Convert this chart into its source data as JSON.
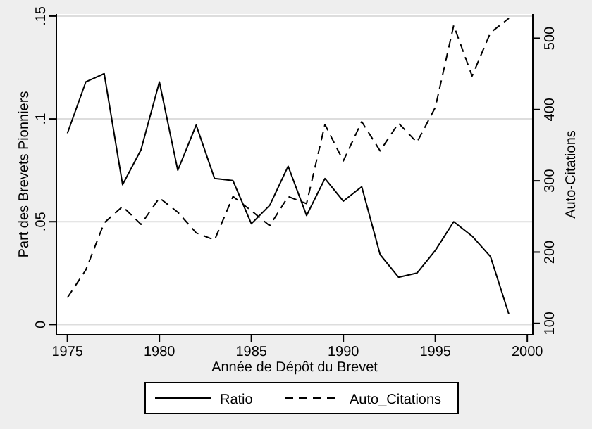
{
  "chart_data": {
    "type": "line",
    "xlabel": "Année de Dépôt du Brevet",
    "ylabel": "Part des Brevets Pionniers",
    "y2label": "Auto-Citations",
    "x": [
      1975,
      1976,
      1977,
      1978,
      1979,
      1980,
      1981,
      1982,
      1983,
      1984,
      1985,
      1986,
      1987,
      1988,
      1989,
      1990,
      1991,
      1992,
      1993,
      1994,
      1995,
      1996,
      1997,
      1998,
      1999
    ],
    "series": [
      {
        "name": "Ratio",
        "color": "#000000",
        "line_style": "solid",
        "values": [
          0.093,
          0.118,
          0.122,
          0.068,
          0.085,
          0.118,
          0.075,
          0.097,
          0.071,
          0.07,
          0.049,
          0.058,
          0.077,
          0.053,
          0.071,
          0.06,
          0.067,
          0.034,
          0.023,
          0.025,
          0.036,
          0.05,
          0.043,
          0.033,
          0.005
        ]
      },
      {
        "name": "Auto_Citations",
        "color": "#000000",
        "line_style": "dashed",
        "axis": "y2",
        "values": [
          136,
          175,
          241,
          264,
          239,
          276,
          256,
          227,
          217,
          278,
          258,
          237,
          278,
          268,
          379,
          328,
          383,
          342,
          381,
          354,
          403,
          518,
          447,
          508,
          528
        ]
      }
    ],
    "xlim": [
      1974.4,
      2000.3
    ],
    "xticks": [
      1975,
      1980,
      1985,
      1990,
      1995,
      2000
    ],
    "ylim": [
      -0.005,
      0.151
    ],
    "yticks": [
      {
        "value": 0,
        "label": "0"
      },
      {
        "value": 0.05,
        "label": ".05"
      },
      {
        "value": 0.1,
        "label": ".1"
      },
      {
        "value": 0.15,
        "label": ".15"
      }
    ],
    "y2lim": [
      84,
      534
    ],
    "y2ticks": [
      100,
      200,
      300,
      400,
      500
    ],
    "grid": "y",
    "legend": "bottom",
    "marker": "none"
  }
}
